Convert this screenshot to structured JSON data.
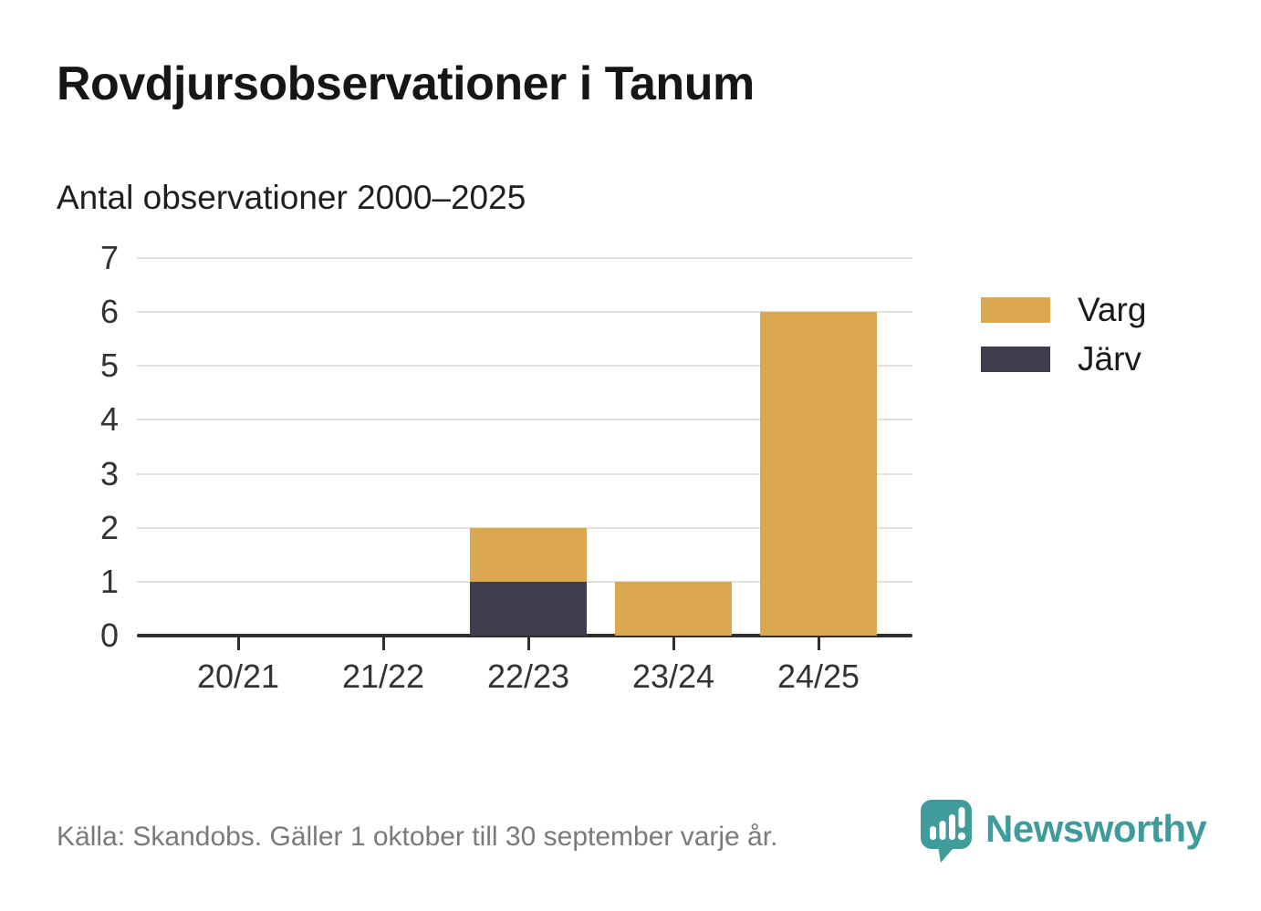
{
  "page": {
    "background": "#ffffff"
  },
  "header": {
    "title": "Rovdjursobservationer i Tanum",
    "subtitle": "Antal observationer 2000–2025"
  },
  "chart_data": {
    "type": "bar",
    "stacked": true,
    "title": "Rovdjursobservationer i Tanum",
    "subtitle": "Antal observationer 2000–2025",
    "categories": [
      "20/21",
      "21/22",
      "22/23",
      "23/24",
      "24/25"
    ],
    "series": [
      {
        "name": "Varg",
        "color": "#DBA84F",
        "values": [
          0,
          0,
          1,
          1,
          6
        ]
      },
      {
        "name": "Järv",
        "color": "#3F3D4D",
        "values": [
          0,
          0,
          1,
          0,
          0
        ]
      }
    ],
    "stack_bottom_to_top": [
      "Järv",
      "Varg"
    ],
    "stacked_totals": [
      0,
      0,
      2,
      1,
      6
    ],
    "xlabel": "",
    "ylabel": "",
    "ylim": [
      0,
      7
    ],
    "yticks": [
      0,
      1,
      2,
      3,
      4,
      5,
      6,
      7
    ],
    "grid": true,
    "grid_color": "#e1e1e1",
    "axis_color": "#2e2e2e",
    "tick_label_color": "#333333",
    "legend_position": "right"
  },
  "footer": {
    "source": "Källa: Skandobs. Gäller 1 oktober till 30 september varje år.",
    "brand": "Newsworthy",
    "brand_color": "#3F9C9A"
  }
}
